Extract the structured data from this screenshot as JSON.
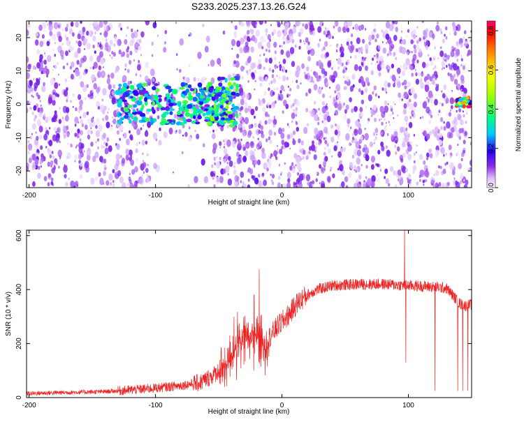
{
  "title": "S233.2025.237.13.26.G24",
  "chart_data": [
    {
      "type": "heatmap",
      "xlabel": "Height of straight line (km)",
      "ylabel": "Frequency (Hz)",
      "xlim": [
        -202,
        150
      ],
      "ylim": [
        -25,
        25
      ],
      "xticks": [
        -200,
        -100,
        0,
        100
      ],
      "xtick_labels": [
        "-200",
        "-100",
        "0",
        "100"
      ],
      "yticks": [
        -20,
        -10,
        0,
        10,
        20
      ],
      "ytick_labels": [
        "-20",
        "-10",
        "0",
        "10",
        "20"
      ],
      "colorbar": {
        "label": "Normalized spectral amplitude",
        "range": [
          0,
          0.85
        ],
        "ticks": [
          0,
          0.2,
          0.4,
          0.6,
          0.8
        ],
        "tick_labels": [
          "0.0",
          "0.2",
          "0.4",
          "0.6",
          "0.8"
        ],
        "colors": [
          "#ffffff",
          "#d8b6ff",
          "#8a2be2",
          "#2a00ff",
          "#00c8ff",
          "#00ff80",
          "#a0ff00",
          "#ffff00",
          "#ff8000",
          "#ff0000",
          "#ff0080"
        ]
      },
      "hot_regions": [
        {
          "x": [
            -130,
            -40
          ],
          "y": [
            -6,
            6
          ],
          "level": 0.3
        },
        {
          "x": [
            -60,
            -35
          ],
          "y": [
            -7,
            8
          ],
          "level": 0.35
        },
        {
          "x": [
            138,
            150
          ],
          "y": [
            -1,
            2
          ],
          "level": 0.75
        }
      ],
      "gap_regions": [
        {
          "x": [
            -110,
            -40
          ],
          "y": [
            8,
            25
          ]
        },
        {
          "x": [
            -105,
            -55
          ],
          "y": [
            -25,
            -10
          ]
        }
      ]
    },
    {
      "type": "line",
      "xlabel": "Height of straight line (km)",
      "ylabel": "SNR (10 * v/v)",
      "xlim": [
        -202,
        150
      ],
      "ylim": [
        0,
        620
      ],
      "xticks": [
        -200,
        -100,
        0,
        100
      ],
      "xtick_labels": [
        "-200",
        "-100",
        "0",
        "100"
      ],
      "yticks": [
        0,
        200,
        400,
        600
      ],
      "ytick_labels": [
        "0",
        "200",
        "400",
        "600"
      ],
      "color": "#ee2222",
      "series": [
        {
          "name": "SNR",
          "x": [
            -202,
            -180,
            -160,
            -140,
            -120,
            -100,
            -80,
            -65,
            -55,
            -45,
            -38,
            -32,
            -28,
            -24,
            -20,
            -16,
            -12,
            -8,
            -4,
            0,
            6,
            12,
            20,
            28,
            40,
            60,
            80,
            100,
            120,
            130,
            135,
            140,
            145,
            150
          ],
          "values": [
            15,
            18,
            20,
            22,
            28,
            35,
            45,
            55,
            80,
            120,
            170,
            200,
            230,
            210,
            240,
            190,
            210,
            235,
            260,
            280,
            310,
            350,
            380,
            400,
            415,
            420,
            420,
            415,
            410,
            405,
            380,
            350,
            340,
            345
          ]
        }
      ],
      "spikes": [
        {
          "x": 97,
          "value": 620
        },
        {
          "x": 98,
          "value": 130
        },
        {
          "x": 121,
          "value": 25
        },
        {
          "x": 139,
          "value": 25
        },
        {
          "x": 143,
          "value": 25
        },
        {
          "x": 147,
          "value": 25
        },
        {
          "x": -18,
          "value": 475
        },
        {
          "x": -22,
          "value": 380
        },
        {
          "x": -38,
          "value": 300
        }
      ]
    }
  ]
}
